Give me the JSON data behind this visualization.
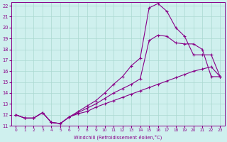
{
  "xlabel": "Windchill (Refroidissement éolien,°C)",
  "bg_color": "#cff0ee",
  "line_color": "#880088",
  "grid_color": "#aad8d0",
  "xlim": [
    -0.5,
    23.5
  ],
  "ylim": [
    11.0,
    22.3
  ],
  "yticks": [
    11,
    12,
    13,
    14,
    15,
    16,
    17,
    18,
    19,
    20,
    21,
    22
  ],
  "xticks": [
    0,
    1,
    2,
    3,
    4,
    5,
    6,
    7,
    8,
    9,
    10,
    11,
    12,
    13,
    14,
    15,
    16,
    17,
    18,
    19,
    20,
    21,
    22,
    23
  ],
  "line1_x": [
    0,
    1,
    2,
    3,
    4,
    5,
    6,
    7,
    8,
    9,
    10,
    11,
    12,
    13,
    14,
    15,
    16,
    17,
    18,
    19,
    20,
    21,
    22,
    23
  ],
  "line1_y": [
    12.0,
    11.7,
    11.7,
    12.2,
    11.3,
    11.2,
    11.8,
    12.1,
    12.3,
    12.7,
    13.0,
    13.3,
    13.6,
    13.9,
    14.2,
    14.5,
    14.8,
    15.1,
    15.4,
    15.7,
    16.0,
    16.2,
    16.4,
    15.5
  ],
  "line2_x": [
    0,
    1,
    2,
    3,
    4,
    5,
    6,
    7,
    8,
    9,
    10,
    11,
    12,
    13,
    14,
    15,
    16,
    17,
    18,
    19,
    20,
    21,
    22,
    23
  ],
  "line2_y": [
    12.0,
    11.7,
    11.7,
    12.2,
    11.3,
    11.2,
    11.8,
    12.2,
    12.6,
    13.0,
    13.5,
    14.0,
    14.4,
    14.8,
    15.3,
    18.8,
    19.3,
    19.2,
    18.6,
    18.5,
    18.5,
    18.0,
    15.5,
    15.5
  ],
  "line3_x": [
    0,
    1,
    2,
    3,
    4,
    5,
    6,
    7,
    8,
    9,
    10,
    11,
    12,
    13,
    14,
    15,
    16,
    17,
    18,
    19,
    20,
    21,
    22,
    23
  ],
  "line3_y": [
    12.0,
    11.7,
    11.7,
    12.2,
    11.3,
    11.2,
    11.8,
    12.3,
    12.8,
    13.3,
    14.0,
    14.8,
    15.5,
    16.5,
    17.2,
    21.8,
    22.2,
    21.5,
    20.0,
    19.2,
    17.5,
    17.5,
    17.5,
    15.5
  ]
}
